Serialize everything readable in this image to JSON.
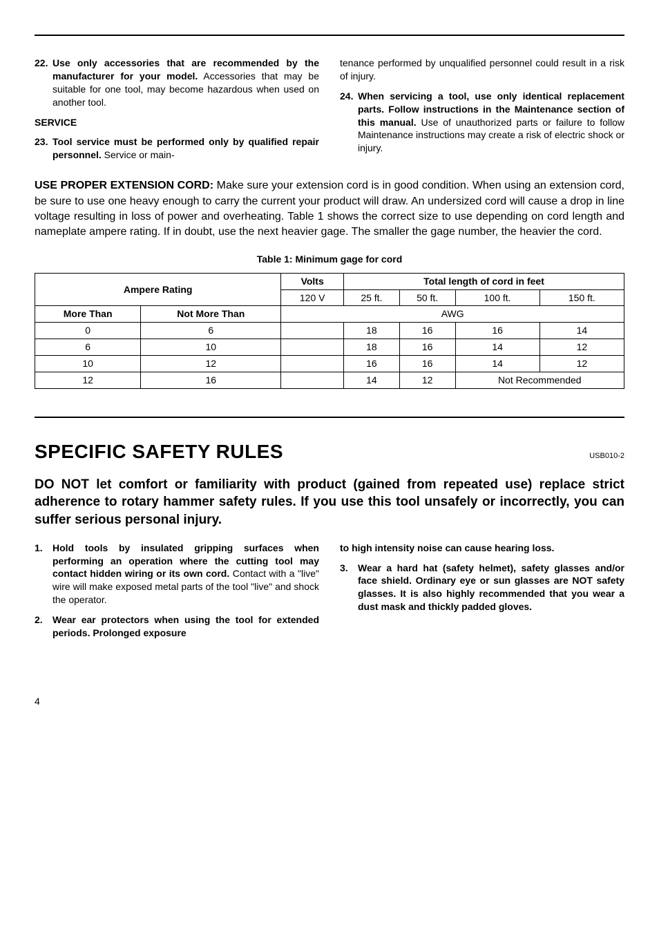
{
  "top": {
    "items": [
      {
        "num": "22.",
        "bold": "Use only accessories that are recommended by the manufacturer for your model.",
        "rest": " Accessories that may be suitable for one tool, may become hazardous when used on another tool."
      }
    ],
    "service_label": "SERVICE",
    "item23": {
      "num": "23.",
      "bold": "Tool service must be performed only by qualified repair personnel.",
      "rest": " Service or main-"
    },
    "item23_cont": "tenance performed by unqualified personnel could result in a risk of injury.",
    "item24": {
      "num": "24.",
      "bold": "When servicing a tool, use only identical replacement parts. Follow instructions in the Maintenance section of this manual.",
      "rest": " Use of unauthorized parts or failure to follow Maintenance instructions may create a risk of electric shock or injury."
    }
  },
  "extension": {
    "lead_bold": "USE PROPER EXTENSION CORD:",
    "body": " Make sure your extension cord is in good condition. When using an extension cord, be sure to use one heavy enough to carry the current your product will draw. An undersized cord will cause a drop in line voltage resulting in loss of power and overheating. Table 1 shows the correct size to use depending on cord length and nameplate ampere rating. If in doubt, use the next heavier gage. The smaller the gage number, the heavier the cord."
  },
  "table": {
    "caption": "Table 1: Minimum gage for cord",
    "ampere_rating": "Ampere Rating",
    "volts": "Volts",
    "total_len": "Total length of cord in feet",
    "volt_val": "120 V",
    "len25": "25 ft.",
    "len50": "50 ft.",
    "len100": "100 ft.",
    "len150": "150 ft.",
    "more_than": "More Than",
    "not_more_than": "Not More Than",
    "awg": "AWG",
    "r1c1": "0",
    "r1c2": "6",
    "r1v25": "18",
    "r1v50": "16",
    "r1v100": "16",
    "r1v150": "14",
    "r2c1": "6",
    "r2c2": "10",
    "r2v25": "18",
    "r2v50": "16",
    "r2v100": "14",
    "r2v150": "12",
    "r3c1": "10",
    "r3c2": "12",
    "r3v25": "16",
    "r3v50": "16",
    "r3v100": "14",
    "r3v150": "12",
    "r4c1": "12",
    "r4c2": "16",
    "r4v25": "14",
    "r4v50": "12",
    "not_rec": "Not Recommended"
  },
  "specific": {
    "title": "SPECIFIC SAFETY RULES",
    "code": "USB010-2",
    "warning": "DO NOT let comfort or familiarity with product (gained from repeated use) replace strict adherence to rotary hammer safety rules. If you use this tool unsafely or incorrectly, you can suffer serious personal injury.",
    "rule1": {
      "num": "1.",
      "bold": "Hold tools by insulated gripping surfaces when performing an operation where the cutting tool may contact hidden wiring or its own cord.",
      "rest": " Contact with a \"live\" wire will make exposed metal parts of the tool \"live\" and shock the operator."
    },
    "rule2": {
      "num": "2.",
      "bold": "Wear ear protectors when using the tool for extended periods. Prolonged exposure"
    },
    "rule2_cont": "to high intensity noise can cause hearing loss.",
    "rule3": {
      "num": "3.",
      "bold": "Wear a hard hat (safety helmet), safety glasses and/or face shield. Ordinary eye or sun glasses are NOT safety glasses. It is also highly recommended that you wear a dust mask and thickly padded gloves."
    }
  },
  "page": "4"
}
